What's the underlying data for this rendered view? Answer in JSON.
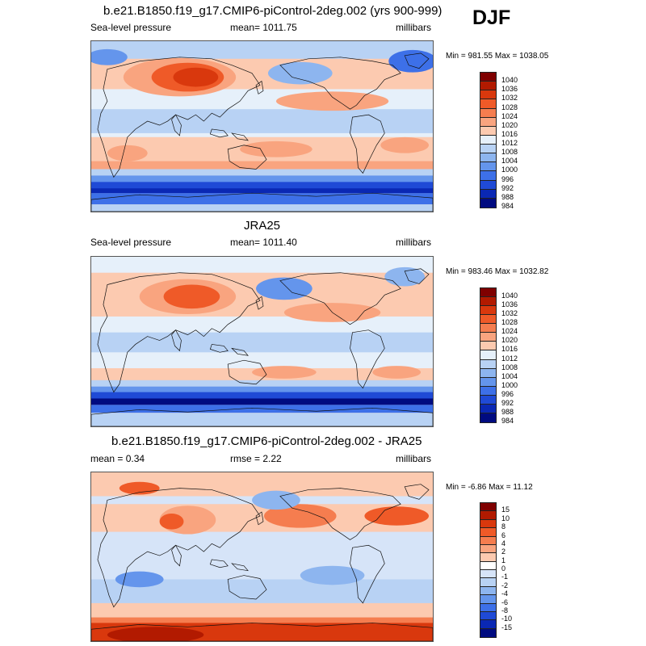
{
  "season": "DJF",
  "panels": [
    {
      "title": "b.e21.B1850.f19_g17.CMIP6-piControl-2deg.002 (yrs 900-999)",
      "left": "Sea-level pressure",
      "center": "mean= 1011.75",
      "right": "millibars",
      "minmax": "Min = 981.55 Max = 1038.05",
      "levels": [
        "1040",
        "1036",
        "1032",
        "1028",
        "1024",
        "1020",
        "1016",
        "1012",
        "1008",
        "1004",
        "1000",
        "996",
        "992",
        "988",
        "984"
      ],
      "colors": [
        "#7f0000",
        "#b21a00",
        "#d9380d",
        "#ef5a28",
        "#f57d4f",
        "#f9a47f",
        "#fccab0",
        "#e6f0fa",
        "#b8d2f4",
        "#8db5ef",
        "#6495ec",
        "#3d70e8",
        "#1f4ad6",
        "#0a28b4",
        "#000b80"
      ]
    },
    {
      "title": "JRA25",
      "left": "Sea-level pressure",
      "center": "mean= 1011.40",
      "right": "millibars",
      "minmax": "Min = 983.46 Max = 1032.82",
      "levels": [
        "1040",
        "1036",
        "1032",
        "1028",
        "1024",
        "1020",
        "1016",
        "1012",
        "1008",
        "1004",
        "1000",
        "996",
        "992",
        "988",
        "984"
      ],
      "colors": [
        "#7f0000",
        "#b21a00",
        "#d9380d",
        "#ef5a28",
        "#f57d4f",
        "#f9a47f",
        "#fccab0",
        "#e6f0fa",
        "#b8d2f4",
        "#8db5ef",
        "#6495ec",
        "#3d70e8",
        "#1f4ad6",
        "#0a28b4",
        "#000b80"
      ]
    },
    {
      "title": "b.e21.B1850.f19_g17.CMIP6-piControl-2deg.002 - JRA25",
      "left": "mean =   0.34",
      "center": "rmse =   2.22",
      "right": "millibars",
      "minmax": "Min =  -6.86 Max =  11.12",
      "levels": [
        "15",
        "10",
        "8",
        "6",
        "4",
        "2",
        "1",
        "0",
        "-1",
        "-2",
        "-4",
        "-6",
        "-8",
        "-10",
        "-15"
      ],
      "colors": [
        "#7f0000",
        "#b21a00",
        "#d9380d",
        "#ef5a28",
        "#f57d4f",
        "#f9a47f",
        "#fccab0",
        "#ffffff",
        "#d6e4f8",
        "#b8d2f4",
        "#8db5ef",
        "#6495ec",
        "#3d70e8",
        "#1f4ad6",
        "#0a28b4",
        "#000b80"
      ]
    }
  ]
}
